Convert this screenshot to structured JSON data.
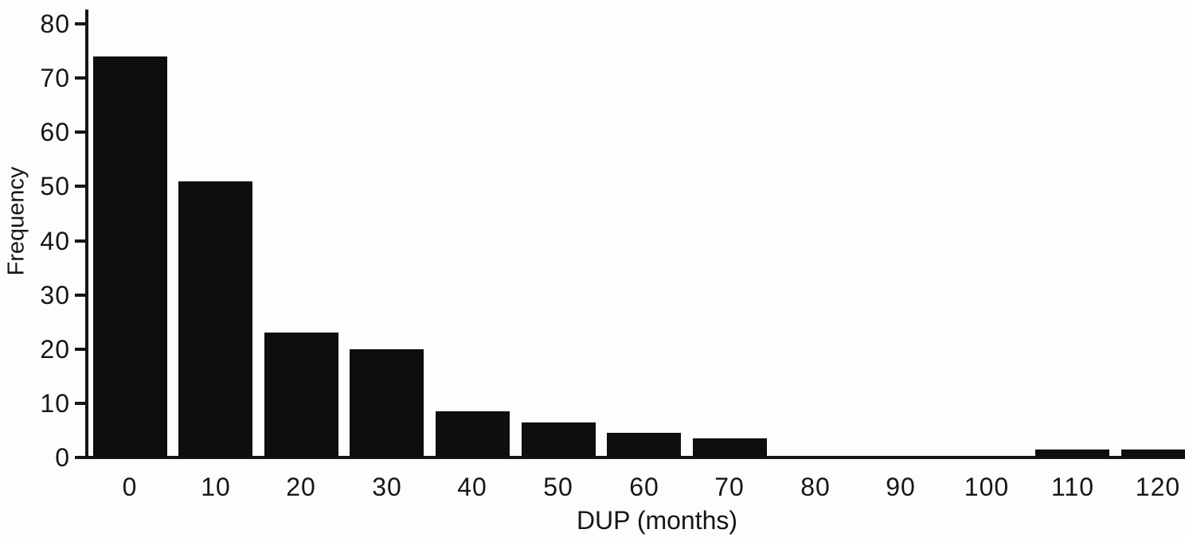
{
  "figure": {
    "kind": "histogram",
    "background": "#fdfdfd"
  },
  "chart_data": {
    "type": "bar",
    "title": "",
    "xlabel": "DUP (months)",
    "ylabel": "Frequency",
    "categories": [
      "0",
      "10",
      "20",
      "30",
      "40",
      "50",
      "60",
      "70",
      "80",
      "90",
      "100",
      "110",
      "120"
    ],
    "values": [
      74,
      51,
      23,
      20,
      8.5,
      6.5,
      4.5,
      3.5,
      0,
      0,
      0,
      1.5,
      1.5
    ],
    "ylim": [
      0,
      80
    ],
    "yticks": [
      0,
      10,
      20,
      30,
      40,
      50,
      60,
      70,
      80
    ],
    "bar_color": "#0e0e0e",
    "axis_color": "#161616",
    "grid": false,
    "legend": "none"
  }
}
